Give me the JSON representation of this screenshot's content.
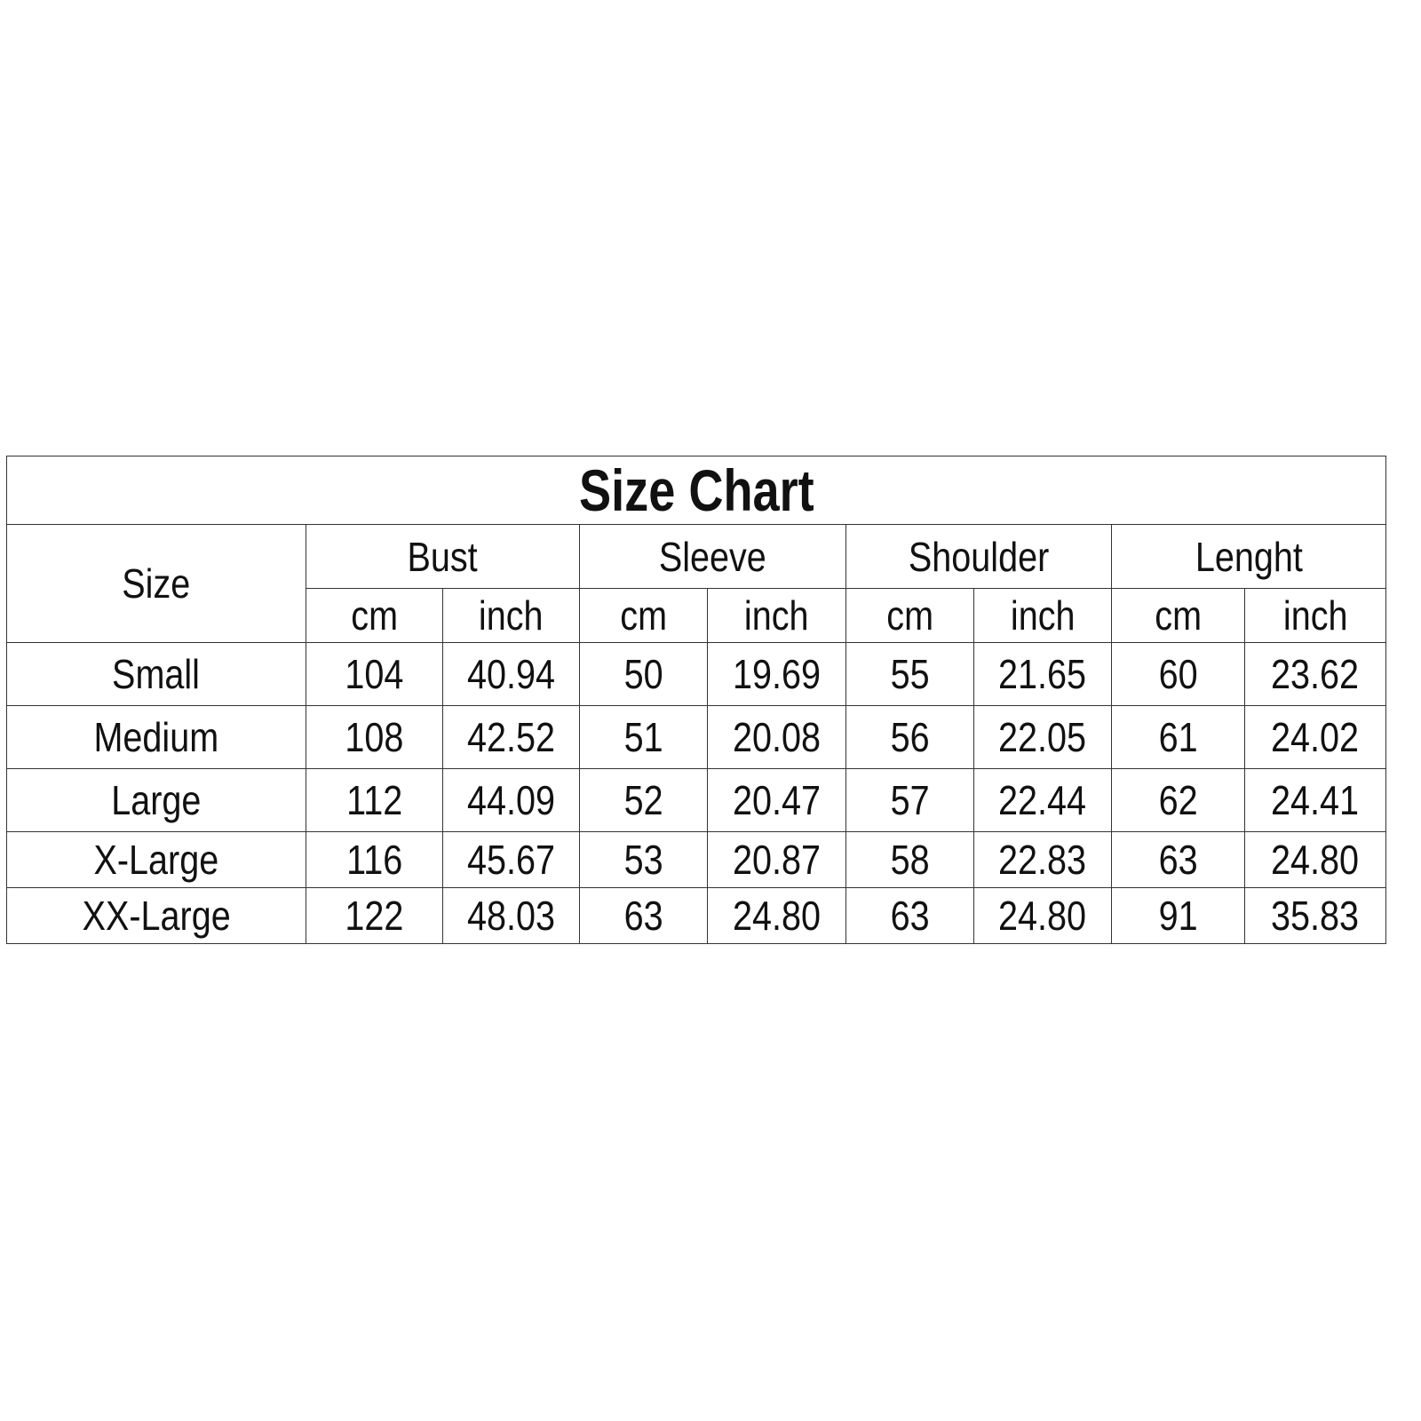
{
  "title": "Size Chart",
  "size_header": "Size",
  "groups": [
    "Bust",
    "Sleeve",
    "Shoulder",
    "Lenght"
  ],
  "units": [
    "cm",
    "inch"
  ],
  "rows": [
    {
      "size": "Small",
      "values": [
        "104",
        "40.94",
        "50",
        "19.69",
        "55",
        "21.65",
        "60",
        "23.62"
      ]
    },
    {
      "size": "Medium",
      "values": [
        "108",
        "42.52",
        "51",
        "20.08",
        "56",
        "22.05",
        "61",
        "24.02"
      ]
    },
    {
      "size": "Large",
      "values": [
        "112",
        "44.09",
        "52",
        "20.47",
        "57",
        "22.44",
        "62",
        "24.41"
      ]
    },
    {
      "size": "X-Large",
      "values": [
        "116",
        "45.67",
        "53",
        "20.87",
        "58",
        "22.83",
        "63",
        "24.80"
      ]
    },
    {
      "size": "XX-Large",
      "values": [
        "122",
        "48.03",
        "63",
        "24.80",
        "63",
        "24.80",
        "91",
        "35.83"
      ]
    }
  ]
}
